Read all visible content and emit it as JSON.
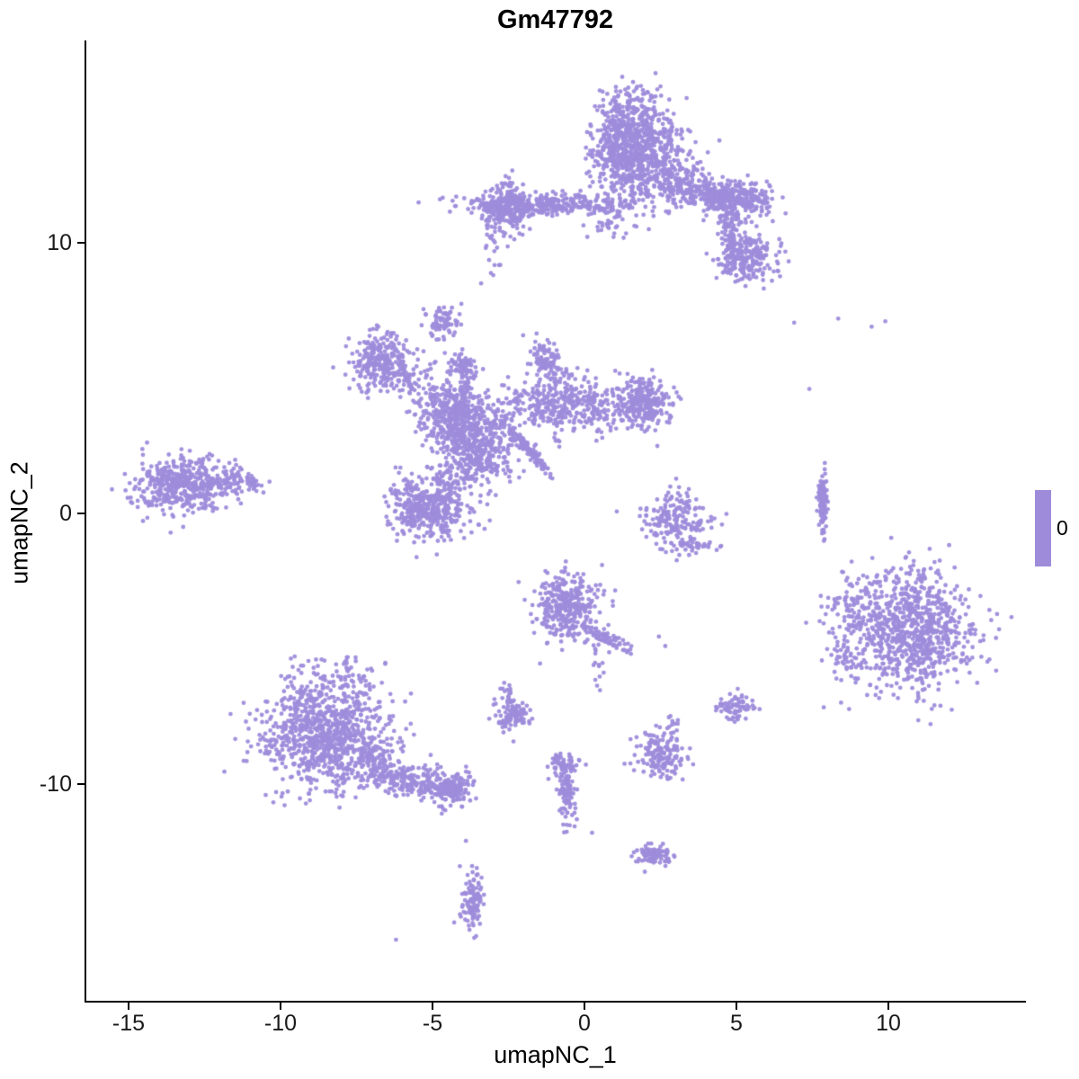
{
  "chart_data": {
    "type": "scatter",
    "title": "Gm47792",
    "xlabel": "umapNC_1",
    "ylabel": "umapNC_2",
    "x_ticks": [
      {
        "v": -15,
        "label": "-15"
      },
      {
        "v": -10,
        "label": "-10"
      },
      {
        "v": -5,
        "label": "-5"
      },
      {
        "v": 0,
        "label": "0"
      },
      {
        "v": 5,
        "label": "5"
      },
      {
        "v": 10,
        "label": "10"
      }
    ],
    "y_ticks": [
      {
        "v": 10,
        "label": "10"
      },
      {
        "v": 0,
        "label": "0"
      },
      {
        "v": -10,
        "label": "-10"
      }
    ],
    "xlim": [
      -16.4,
      14.5
    ],
    "ylim": [
      -17.8,
      15.9
    ],
    "grid": false,
    "legend_position": "right",
    "point_color": "#9e8cdb",
    "point_radius": 2.4,
    "expression_value": 0,
    "legend": {
      "tick_label": "0",
      "bar_color": "#9e8cdb"
    },
    "clusters": [
      {
        "cx": 1.6,
        "cy": 14.1,
        "sx": 0.65,
        "sy": 0.75,
        "n": 500,
        "angle": 0
      },
      {
        "cx": 2.2,
        "cy": 12.7,
        "sx": 0.85,
        "sy": 0.7,
        "n": 350,
        "angle": 0
      },
      {
        "cx": 1.0,
        "cy": 13.3,
        "sx": 0.4,
        "sy": 0.9,
        "n": 150,
        "angle": 0
      },
      {
        "cx": 3.6,
        "cy": 11.9,
        "sx": 0.8,
        "sy": 0.28,
        "n": 200,
        "angle": -12
      },
      {
        "cx": 5.0,
        "cy": 11.6,
        "sx": 0.55,
        "sy": 0.35,
        "n": 280,
        "angle": 0
      },
      {
        "cx": 4.8,
        "cy": 10.4,
        "sx": 0.2,
        "sy": 0.5,
        "n": 70,
        "angle": 0
      },
      {
        "cx": 5.3,
        "cy": 9.5,
        "sx": 0.5,
        "sy": 0.4,
        "n": 230,
        "angle": 0
      },
      {
        "cx": -1.2,
        "cy": 11.4,
        "sx": 1.4,
        "sy": 0.18,
        "n": 330,
        "angle": 0
      },
      {
        "cx": -2.6,
        "cy": 11.3,
        "sx": 0.4,
        "sy": 0.45,
        "n": 240,
        "angle": 0
      },
      {
        "cx": 0.7,
        "cy": 10.8,
        "sx": 0.6,
        "sy": 0.3,
        "n": 35,
        "angle": 0
      },
      {
        "cx": -3.0,
        "cy": 9.8,
        "sx": 0.15,
        "sy": 0.6,
        "n": 18,
        "angle": 0
      },
      {
        "cx": -4.65,
        "cy": 7.1,
        "sx": 0.28,
        "sy": 0.28,
        "n": 70,
        "angle": 0
      },
      {
        "cx": -6.7,
        "cy": 5.6,
        "sx": 0.5,
        "sy": 0.5,
        "n": 260,
        "angle": 0
      },
      {
        "cx": -5.7,
        "cy": 5.0,
        "sx": 0.5,
        "sy": 0.35,
        "n": 60,
        "angle": 0
      },
      {
        "cx": -4.05,
        "cy": 5.5,
        "sx": 0.22,
        "sy": 0.25,
        "n": 60,
        "angle": 0
      },
      {
        "cx": -3.9,
        "cy": 4.8,
        "sx": 0.15,
        "sy": 0.35,
        "n": 30,
        "angle": 0
      },
      {
        "cx": -4.3,
        "cy": 3.6,
        "sx": 0.6,
        "sy": 0.65,
        "n": 420,
        "angle": 0
      },
      {
        "cx": -3.5,
        "cy": 2.4,
        "sx": 0.55,
        "sy": 0.7,
        "n": 380,
        "angle": 0
      },
      {
        "cx": -0.6,
        "cy": 3.95,
        "sx": 1.25,
        "sy": 0.5,
        "n": 430,
        "angle": 0
      },
      {
        "cx": -1.3,
        "cy": 5.85,
        "sx": 0.25,
        "sy": 0.3,
        "n": 70,
        "angle": 0
      },
      {
        "cx": -1.1,
        "cy": 5.0,
        "sx": 0.3,
        "sy": 0.4,
        "n": 40,
        "angle": 0
      },
      {
        "cx": 2.0,
        "cy": 4.1,
        "sx": 0.42,
        "sy": 0.5,
        "n": 230,
        "angle": 0
      },
      {
        "cx": -1.85,
        "cy": 2.35,
        "sx": 0.6,
        "sy": 0.07,
        "n": 130,
        "angle": -51
      },
      {
        "cx": -5.1,
        "cy": 0.2,
        "sx": 0.68,
        "sy": 0.6,
        "n": 430,
        "angle": 0
      },
      {
        "cx": -4.6,
        "cy": 1.3,
        "sx": 0.3,
        "sy": 0.3,
        "n": 40,
        "angle": 0
      },
      {
        "cx": -13.2,
        "cy": 1.0,
        "sx": 0.8,
        "sy": 0.5,
        "n": 430,
        "angle": 0
      },
      {
        "cx": -11.5,
        "cy": 1.2,
        "sx": 0.6,
        "sy": 0.22,
        "n": 80,
        "angle": 0
      },
      {
        "cx": -12.5,
        "cy": 2.0,
        "sx": 0.6,
        "sy": 0.25,
        "n": 15,
        "angle": 0
      },
      {
        "cx": 2.95,
        "cy": -0.25,
        "sx": 0.55,
        "sy": 0.5,
        "n": 190,
        "angle": 0
      },
      {
        "cx": 3.3,
        "cy": -1.2,
        "sx": 0.35,
        "sy": 0.25,
        "n": 35,
        "angle": 0
      },
      {
        "cx": 7.85,
        "cy": 0.35,
        "sx": 0.07,
        "sy": 0.55,
        "n": 90,
        "angle": 0
      },
      {
        "cx": 10.7,
        "cy": -4.3,
        "sx": 1.05,
        "sy": 1.1,
        "n": 900,
        "angle": 0
      },
      {
        "cx": 8.7,
        "cy": -3.4,
        "sx": 0.4,
        "sy": 0.5,
        "n": 60,
        "angle": 0
      },
      {
        "cx": 8.5,
        "cy": -5.4,
        "sx": 0.3,
        "sy": 0.4,
        "n": 40,
        "angle": 0
      },
      {
        "cx": -8.6,
        "cy": -8.2,
        "sx": 1.0,
        "sy": 0.95,
        "n": 850,
        "angle": 0
      },
      {
        "cx": -8.3,
        "cy": -6.2,
        "sx": 0.8,
        "sy": 0.5,
        "n": 100,
        "angle": 0
      },
      {
        "cx": -7.0,
        "cy": -9.3,
        "sx": 0.6,
        "sy": 0.4,
        "n": 120,
        "angle": 0
      },
      {
        "cx": -5.6,
        "cy": -9.9,
        "sx": 0.8,
        "sy": 0.28,
        "n": 200,
        "angle": -8
      },
      {
        "cx": -4.35,
        "cy": -10.2,
        "sx": 0.3,
        "sy": 0.3,
        "n": 130,
        "angle": 0
      },
      {
        "cx": -0.6,
        "cy": -3.4,
        "sx": 0.5,
        "sy": 0.65,
        "n": 330,
        "angle": 0
      },
      {
        "cx": 0.7,
        "cy": -4.6,
        "sx": 0.45,
        "sy": 0.14,
        "n": 80,
        "angle": -40
      },
      {
        "cx": 0.45,
        "cy": -5.7,
        "sx": 0.1,
        "sy": 0.4,
        "n": 14,
        "angle": 0
      },
      {
        "cx": -2.45,
        "cy": -6.9,
        "sx": 0.1,
        "sy": 0.35,
        "n": 30,
        "angle": 15
      },
      {
        "cx": -2.35,
        "cy": -7.5,
        "sx": 0.3,
        "sy": 0.25,
        "n": 90,
        "angle": 0
      },
      {
        "cx": 2.5,
        "cy": -8.9,
        "sx": 0.38,
        "sy": 0.45,
        "n": 160,
        "angle": 0
      },
      {
        "cx": 2.75,
        "cy": -8.0,
        "sx": 0.15,
        "sy": 0.25,
        "n": 12,
        "angle": 0
      },
      {
        "cx": 4.9,
        "cy": -7.1,
        "sx": 0.3,
        "sy": 0.25,
        "n": 70,
        "angle": 0
      },
      {
        "cx": -0.6,
        "cy": -10.2,
        "sx": 0.12,
        "sy": 0.65,
        "n": 100,
        "angle": 0
      },
      {
        "cx": -0.68,
        "cy": -9.3,
        "sx": 0.25,
        "sy": 0.2,
        "n": 55,
        "angle": 0
      },
      {
        "cx": 2.3,
        "cy": -12.6,
        "sx": 0.3,
        "sy": 0.22,
        "n": 85,
        "angle": 0
      },
      {
        "cx": -3.7,
        "cy": -14.3,
        "sx": 0.2,
        "sy": 0.55,
        "n": 110,
        "angle": 0
      }
    ],
    "extra_points": [
      [
        6.9,
        7.05
      ],
      [
        8.35,
        7.2
      ],
      [
        9.45,
        6.9
      ],
      [
        9.9,
        7.1
      ],
      [
        7.4,
        4.6
      ],
      [
        -3.4,
        8.5
      ],
      [
        -3.0,
        8.8
      ],
      [
        5.05,
        8.6
      ],
      [
        5.3,
        8.4
      ],
      [
        2.66,
        -4.9
      ],
      [
        2.45,
        -4.55
      ],
      [
        0.25,
        -11.8
      ],
      [
        -0.25,
        -11.3
      ],
      [
        -3.9,
        -12.1
      ],
      [
        -6.2,
        -15.75
      ],
      [
        4.35,
        -1.35
      ],
      [
        4.5,
        -1.2
      ],
      [
        7.9,
        -0.95
      ]
    ]
  }
}
